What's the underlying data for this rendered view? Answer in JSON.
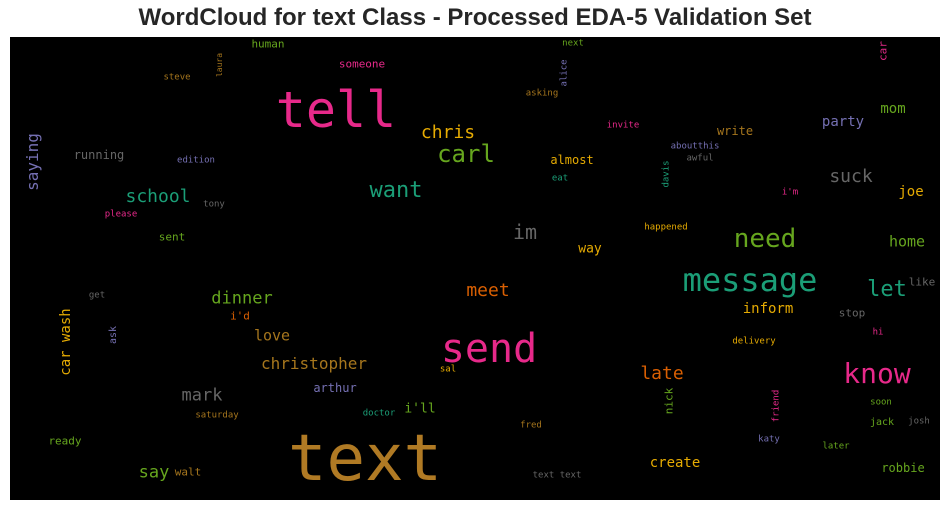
{
  "chart_data": {
    "type": "wordcloud",
    "title": "WordCloud for text Class - Processed EDA-5 Validation Set",
    "words": [
      {
        "text": "text",
        "color": "#b07a24"
      },
      {
        "text": "tell",
        "color": "#e7298a"
      },
      {
        "text": "send",
        "color": "#e7298a"
      },
      {
        "text": "message",
        "color": "#1b9e77"
      },
      {
        "text": "know",
        "color": "#e7298a"
      },
      {
        "text": "need",
        "color": "#66a61e"
      },
      {
        "text": "carl",
        "color": "#66a61e"
      },
      {
        "text": "want",
        "color": "#1b9e77"
      },
      {
        "text": "chris",
        "color": "#e6ab02"
      },
      {
        "text": "let",
        "color": "#1b9e77"
      },
      {
        "text": "meet",
        "color": "#d95f02"
      },
      {
        "text": "im",
        "color": "#666666"
      },
      {
        "text": "suck",
        "color": "#666666"
      },
      {
        "text": "school",
        "color": "#1b9e77"
      },
      {
        "text": "dinner",
        "color": "#66a61e"
      },
      {
        "text": "christopher",
        "color": "#a6761d"
      },
      {
        "text": "late",
        "color": "#d95f02"
      },
      {
        "text": "mark",
        "color": "#666666"
      },
      {
        "text": "say",
        "color": "#66a61e"
      },
      {
        "text": "love",
        "color": "#a6761d"
      },
      {
        "text": "home",
        "color": "#66a61e"
      },
      {
        "text": "party",
        "color": "#7570b3"
      },
      {
        "text": "mom",
        "color": "#66a61e"
      },
      {
        "text": "joe",
        "color": "#e6ab02"
      },
      {
        "text": "saying",
        "color": "#7570b3"
      },
      {
        "text": "car wash",
        "color": "#e6ab02"
      },
      {
        "text": "inform",
        "color": "#e6ab02"
      },
      {
        "text": "create",
        "color": "#e6ab02"
      },
      {
        "text": "way",
        "color": "#e6ab02"
      },
      {
        "text": "i'll",
        "color": "#66a61e"
      },
      {
        "text": "write",
        "color": "#a6761d"
      },
      {
        "text": "almost",
        "color": "#e6ab02"
      },
      {
        "text": "robbie",
        "color": "#66a61e"
      },
      {
        "text": "arthur",
        "color": "#7570b3"
      },
      {
        "text": "running",
        "color": "#666666"
      },
      {
        "text": "human",
        "color": "#66a61e"
      },
      {
        "text": "someone",
        "color": "#e7298a"
      },
      {
        "text": "ready",
        "color": "#66a61e"
      },
      {
        "text": "walt",
        "color": "#a6761d"
      },
      {
        "text": "sent",
        "color": "#66a61e"
      },
      {
        "text": "ask",
        "color": "#7570b3"
      },
      {
        "text": "nick",
        "color": "#66a61e"
      },
      {
        "text": "stop",
        "color": "#666666"
      },
      {
        "text": "like",
        "color": "#666666"
      },
      {
        "text": "car",
        "color": "#e7298a"
      },
      {
        "text": "edition",
        "color": "#7570b3"
      },
      {
        "text": "please",
        "color": "#e7298a"
      },
      {
        "text": "tony",
        "color": "#666666"
      },
      {
        "text": "steve",
        "color": "#a6761d"
      },
      {
        "text": "laura",
        "color": "#a6761d"
      },
      {
        "text": "next",
        "color": "#66a61e"
      },
      {
        "text": "alice",
        "color": "#7570b3"
      },
      {
        "text": "asking",
        "color": "#a6761d"
      },
      {
        "text": "invite",
        "color": "#e7298a"
      },
      {
        "text": "aboutthis",
        "color": "#7570b3"
      },
      {
        "text": "awful",
        "color": "#666666"
      },
      {
        "text": "davis",
        "color": "#1b9e77"
      },
      {
        "text": "eat",
        "color": "#1b9e77"
      },
      {
        "text": "i'm",
        "color": "#e7298a"
      },
      {
        "text": "happened",
        "color": "#e6ab02"
      },
      {
        "text": "get",
        "color": "#666666"
      },
      {
        "text": "i'd",
        "color": "#d95f02"
      },
      {
        "text": "delivery",
        "color": "#e6ab02"
      },
      {
        "text": "hi",
        "color": "#e7298a"
      },
      {
        "text": "sal",
        "color": "#e6ab02"
      },
      {
        "text": "doctor",
        "color": "#1b9e77"
      },
      {
        "text": "saturday",
        "color": "#a6761d"
      },
      {
        "text": "fred",
        "color": "#a6761d"
      },
      {
        "text": "friend",
        "color": "#e7298a"
      },
      {
        "text": "soon",
        "color": "#66a61e"
      },
      {
        "text": "jack",
        "color": "#66a61e"
      },
      {
        "text": "josh",
        "color": "#666666"
      },
      {
        "text": "katy",
        "color": "#7570b3"
      },
      {
        "text": "later",
        "color": "#66a61e"
      },
      {
        "text": "text text",
        "color": "#666666"
      }
    ]
  }
}
